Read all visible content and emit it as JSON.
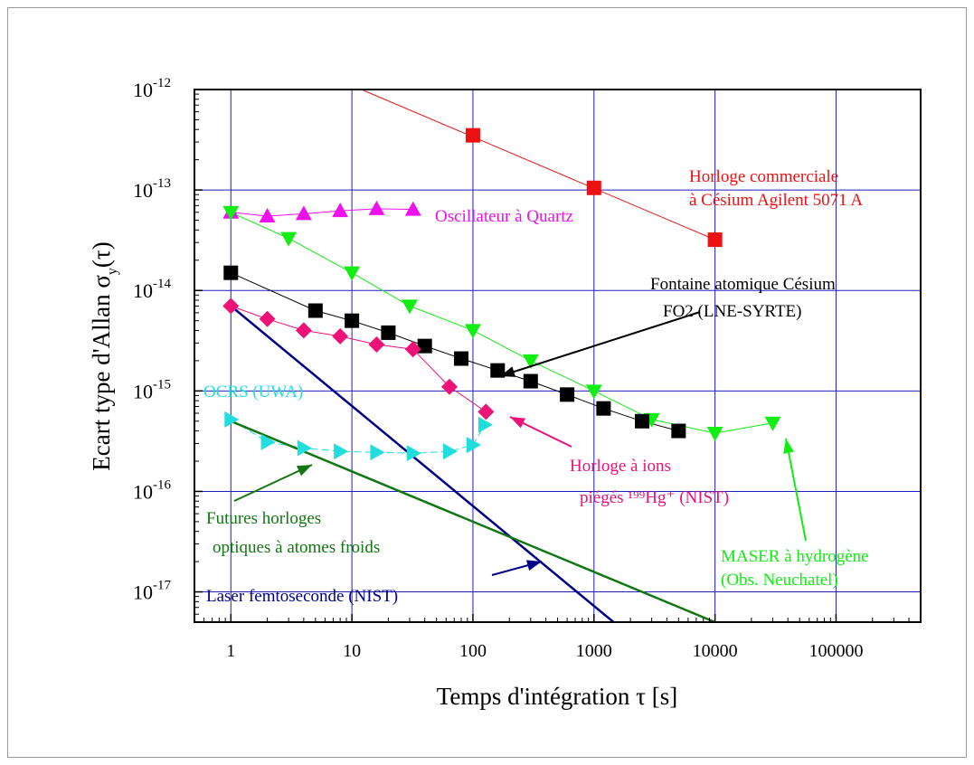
{
  "chart_data": {
    "type": "scatter",
    "title": "",
    "xlabel": "Temps d'intégration τ [s]",
    "ylabel": {
      "main": "Ecart type d'Allan σ",
      "sub": "y",
      "tail": "(τ)"
    },
    "xscale": "log",
    "yscale": "log",
    "xlim": [
      0.5,
      500000
    ],
    "ylim": [
      5e-18,
      1e-12
    ],
    "grid": true,
    "x_ticks": [
      {
        "value": 1,
        "label": "1"
      },
      {
        "value": 10,
        "label": "10"
      },
      {
        "value": 100,
        "label": "100"
      },
      {
        "value": 1000,
        "label": "1000"
      },
      {
        "value": 10000,
        "label": "10000"
      },
      {
        "value": 100000,
        "label": "100000"
      }
    ],
    "y_ticks": [
      {
        "value": 1e-12,
        "base": "10",
        "exp": "-12"
      },
      {
        "value": 1e-13,
        "base": "10",
        "exp": "-13"
      },
      {
        "value": 1e-14,
        "base": "10",
        "exp": "-14"
      },
      {
        "value": 1e-15,
        "base": "10",
        "exp": "-15"
      },
      {
        "value": 1e-16,
        "base": "10",
        "exp": "-16"
      },
      {
        "value": 1e-17,
        "base": "10",
        "exp": "-17"
      }
    ],
    "series": [
      {
        "key": "cesium-agilent",
        "color": "#ee1111",
        "marker": "square",
        "line": [
          [
            12,
            1e-12
          ],
          [
            10000,
            3.2e-14
          ]
        ],
        "points": [
          [
            100,
            3.5e-13
          ],
          [
            1000,
            1.05e-13
          ],
          [
            10000,
            3.2e-14
          ]
        ]
      },
      {
        "key": "quartz",
        "color": "#ee11ee",
        "marker": "triangle-up",
        "points": [
          [
            1,
            6e-14
          ],
          [
            2,
            5.5e-14
          ],
          [
            4,
            5.8e-14
          ],
          [
            8,
            6.2e-14
          ],
          [
            16,
            6.5e-14
          ],
          [
            32,
            6.4e-14
          ]
        ]
      },
      {
        "key": "maser",
        "color": "#11ee11",
        "marker": "triangle-down",
        "points": [
          [
            1,
            6e-14
          ],
          [
            3,
            3.3e-14
          ],
          [
            10,
            1.5e-14
          ],
          [
            30,
            7e-15
          ],
          [
            100,
            4e-15
          ],
          [
            300,
            2e-15
          ],
          [
            1000,
            1e-15
          ],
          [
            3000,
            5.2e-16
          ],
          [
            10000,
            3.8e-16
          ],
          [
            30000,
            4.8e-16
          ]
        ]
      },
      {
        "key": "fo2",
        "color": "#000000",
        "marker": "square",
        "points": [
          [
            1,
            1.5e-14
          ],
          [
            5,
            6.3e-15
          ],
          [
            10,
            5e-15
          ],
          [
            20,
            3.8e-15
          ],
          [
            40,
            2.8e-15
          ],
          [
            80,
            2.1e-15
          ],
          [
            160,
            1.6e-15
          ],
          [
            300,
            1.25e-15
          ],
          [
            600,
            9.2e-16
          ],
          [
            1200,
            6.7e-16
          ],
          [
            2500,
            5e-16
          ],
          [
            5000,
            4e-16
          ]
        ]
      },
      {
        "key": "hg-ion",
        "color": "#ee1177",
        "marker": "diamond",
        "points": [
          [
            1,
            7e-15
          ],
          [
            2,
            5.2e-15
          ],
          [
            4,
            4e-15
          ],
          [
            8,
            3.5e-15
          ],
          [
            16,
            2.9e-15
          ],
          [
            32,
            2.6e-15
          ],
          [
            64,
            1.1e-15
          ],
          [
            128,
            6.2e-16
          ]
        ]
      },
      {
        "key": "ocrs",
        "color": "#22dddd",
        "marker": "triangle-right",
        "dashed": true,
        "points": [
          [
            1,
            5.2e-16
          ],
          [
            2,
            3.1e-16
          ],
          [
            4,
            2.7e-16
          ],
          [
            8,
            2.5e-16
          ],
          [
            16,
            2.45e-16
          ],
          [
            32,
            2.4e-16
          ],
          [
            64,
            2.5e-16
          ],
          [
            100,
            2.9e-16
          ],
          [
            125,
            4.6e-16
          ]
        ]
      },
      {
        "key": "laser-femto",
        "color": "#000088",
        "marker": "none",
        "line": [
          [
            1,
            7e-15
          ],
          [
            1450,
            5e-18
          ]
        ]
      },
      {
        "key": "futures-optiques",
        "color": "#117711",
        "marker": "none",
        "line": [
          [
            1,
            5e-16
          ],
          [
            10000,
            5e-18
          ]
        ]
      }
    ],
    "annotations": [
      {
        "key": "cesium-agilent",
        "lines": [
          "Horloge commerciale",
          "à Césium Agilent 5071 A"
        ],
        "color": "#ee1111"
      },
      {
        "key": "quartz",
        "lines": [
          "Oscillateur à Quartz"
        ],
        "color": "#ee11ee"
      },
      {
        "key": "fo2",
        "lines": [
          "Fontaine atomique Césium",
          "FO2  (LNE-SYRTE)"
        ],
        "color": "#000000"
      },
      {
        "key": "ocrs",
        "lines": [
          "OCRS (UWA)"
        ],
        "color": "#22dddd"
      },
      {
        "key": "hg-ion",
        "lines": [
          "Horloge à ions",
          "piégés ¹⁹⁹Hg⁺ (NIST)"
        ],
        "color": "#ee1177"
      },
      {
        "key": "futures-optiques",
        "lines": [
          "Futures horloges",
          "optiques à atomes froids"
        ],
        "color": "#117711"
      },
      {
        "key": "maser",
        "lines": [
          "MASER à hydrogène",
          "(Obs. Neuchatel)"
        ],
        "color": "#11ee11"
      },
      {
        "key": "laser-femto",
        "lines": [
          "Laser femtoseconde (NIST)"
        ],
        "color": "#000088"
      }
    ]
  }
}
